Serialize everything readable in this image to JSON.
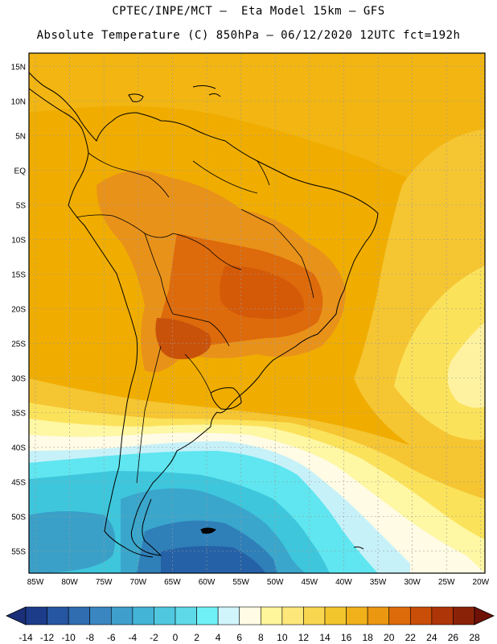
{
  "header": {
    "line1": "CPTEC/INPE/MCT –  Eta Model 15km – GFS",
    "line2": "Absolute Temperature (C) 850hPa – 06/12/2020 12UTC fct=192h"
  },
  "map": {
    "lat_labels": [
      "15N",
      "10N",
      "5N",
      "EQ",
      "5S",
      "10S",
      "15S",
      "20S",
      "25S",
      "30S",
      "35S",
      "40S",
      "45S",
      "50S",
      "55S"
    ],
    "lon_labels": [
      "85W",
      "80W",
      "75W",
      "70W",
      "65W",
      "60W",
      "55W",
      "50W",
      "45W",
      "40W",
      "35W",
      "30W",
      "25W",
      "20W"
    ],
    "palette": {
      "ocean_warm": "#f0ad00",
      "warm_18": "#f2c02e",
      "hot_20": "#e9921a",
      "hot_22": "#dd6a0b",
      "hot_24": "#c5480a",
      "cool_14": "#fbe25b",
      "cool_10": "#fef7a3",
      "cool_6": "#fffbe0",
      "cold_2": "#5fe6f0",
      "cold_m2": "#3ec6dc",
      "cold_m6": "#3a98c8",
      "cold_m10": "#2b6fae"
    }
  },
  "colorbar": {
    "labels": [
      "-14",
      "-12",
      "-10",
      "-8",
      "-6",
      "-4",
      "-2",
      "0",
      "2",
      "4",
      "6",
      "8",
      "10",
      "12",
      "14",
      "16",
      "18",
      "20",
      "22",
      "24",
      "26",
      "28"
    ],
    "colors": [
      "#1c3c8a",
      "#2656a0",
      "#2f6cb0",
      "#3a86c0",
      "#3f9ecc",
      "#43b3d6",
      "#4fc8df",
      "#5ed9e8",
      "#6ff0f7",
      "#d0f5fb",
      "#fffbe4",
      "#fff59a",
      "#fde67a",
      "#f8d64e",
      "#f3c52d",
      "#f0b11a",
      "#ec9710",
      "#de6b0a",
      "#c94e07",
      "#ad3507",
      "#8a2208"
    ]
  }
}
